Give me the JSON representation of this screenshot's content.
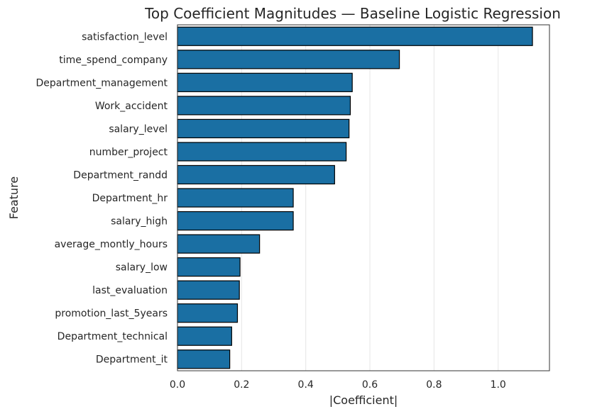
{
  "chart_data": {
    "type": "bar",
    "orientation": "horizontal",
    "title": "Top Coefficient Magnitudes — Baseline Logistic Regression",
    "xlabel": "|Coefficient|",
    "ylabel": "Feature",
    "xlim": [
      0,
      1.16
    ],
    "xticks": [
      "0.0",
      "0.2",
      "0.4",
      "0.6",
      "0.8",
      "1.0"
    ],
    "grid": "vertical",
    "bar_color": "#1a6fa3",
    "edge_color": "#000000",
    "categories": [
      "satisfaction_level",
      "time_spend_company",
      "Department_management",
      "Work_accident",
      "salary_level",
      "number_project",
      "Department_randd",
      "Department_hr",
      "salary_high",
      "average_montly_hours",
      "salary_low",
      "last_evaluation",
      "promotion_last_5years",
      "Department_technical",
      "Department_it"
    ],
    "values": [
      1.107,
      0.692,
      0.545,
      0.539,
      0.535,
      0.526,
      0.49,
      0.361,
      0.361,
      0.256,
      0.195,
      0.193,
      0.187,
      0.169,
      0.163
    ]
  }
}
